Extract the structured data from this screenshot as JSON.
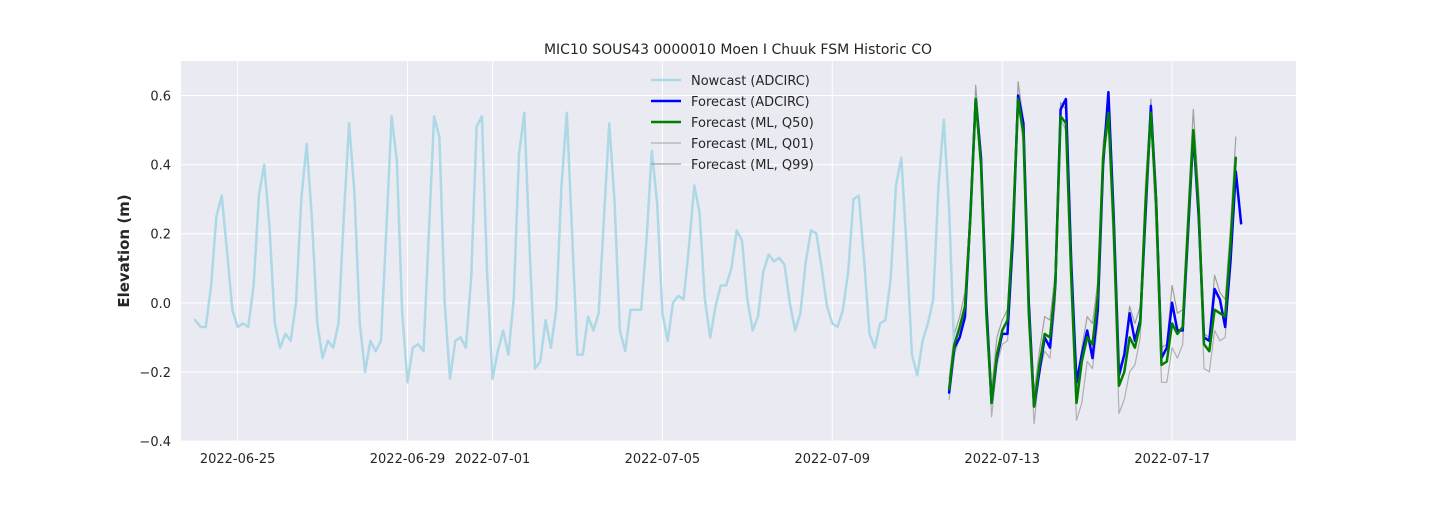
{
  "chart_data": {
    "type": "line",
    "title": "MIC10 SOUS43 0000010 Moen I Chuuk FSM Historic CO",
    "xlabel": "",
    "ylabel": "Elevation (m)",
    "ylim": [
      -0.4,
      0.7
    ],
    "xlim": [
      "2022-06-23T16:00",
      "2022-07-19T22:00"
    ],
    "grid": true,
    "legend_position": "upper center",
    "x_ticks": [
      {
        "date": "2022-06-25T00:00",
        "label": "2022-06-25"
      },
      {
        "date": "2022-06-29T00:00",
        "label": "2022-06-29"
      },
      {
        "date": "2022-07-01T00:00",
        "label": "2022-07-01"
      },
      {
        "date": "2022-07-05T00:00",
        "label": "2022-07-05"
      },
      {
        "date": "2022-07-09T00:00",
        "label": "2022-07-09"
      },
      {
        "date": "2022-07-13T00:00",
        "label": "2022-07-13"
      },
      {
        "date": "2022-07-17T00:00",
        "label": "2022-07-17"
      }
    ],
    "y_ticks": [
      {
        "value": -0.4,
        "label": "−0.4"
      },
      {
        "value": -0.2,
        "label": "−0.2"
      },
      {
        "value": 0.0,
        "label": "0.0"
      },
      {
        "value": 0.2,
        "label": "0.2"
      },
      {
        "value": 0.4,
        "label": "0.4"
      },
      {
        "value": 0.6,
        "label": "0.6"
      }
    ],
    "series": [
      {
        "name": "Nowcast (ADCIRC)",
        "color": "#add8e6",
        "width": 2.5,
        "x_start": "2022-06-24T00:00",
        "step_hours": 3,
        "values": [
          -0.05,
          -0.07,
          -0.07,
          0.05,
          0.25,
          0.31,
          0.15,
          -0.02,
          -0.07,
          -0.06,
          -0.07,
          0.05,
          0.31,
          0.4,
          0.22,
          -0.06,
          -0.13,
          -0.09,
          -0.11,
          0.0,
          0.3,
          0.46,
          0.24,
          -0.06,
          -0.16,
          -0.11,
          -0.13,
          -0.06,
          0.25,
          0.52,
          0.32,
          -0.06,
          -0.2,
          -0.11,
          -0.14,
          -0.11,
          0.21,
          0.54,
          0.41,
          -0.03,
          -0.23,
          -0.13,
          -0.12,
          -0.14,
          0.2,
          0.54,
          0.48,
          0.0,
          -0.22,
          -0.11,
          -0.1,
          -0.13,
          0.08,
          0.51,
          0.54,
          0.08,
          -0.22,
          -0.14,
          -0.08,
          -0.15,
          0.01,
          0.43,
          0.55,
          0.15,
          -0.19,
          -0.17,
          -0.05,
          -0.13,
          -0.02,
          0.34,
          0.55,
          0.2,
          -0.15,
          -0.15,
          -0.04,
          -0.08,
          -0.03,
          0.25,
          0.52,
          0.29,
          -0.08,
          -0.14,
          -0.02,
          -0.02,
          -0.02,
          0.18,
          0.44,
          0.29,
          -0.03,
          -0.11,
          0.0,
          0.02,
          0.01,
          0.16,
          0.34,
          0.26,
          0.01,
          -0.1,
          -0.01,
          0.05,
          0.05,
          0.1,
          0.21,
          0.18,
          0.01,
          -0.08,
          -0.04,
          0.09,
          0.14,
          0.12,
          0.13,
          0.11,
          0.0,
          -0.08,
          -0.03,
          0.12,
          0.21,
          0.2,
          0.1,
          -0.01,
          -0.06,
          -0.07,
          -0.02,
          0.09,
          0.3,
          0.31,
          0.12,
          -0.09,
          -0.13,
          -0.06,
          -0.05,
          0.07,
          0.34,
          0.42,
          0.16,
          -0.15,
          -0.21,
          -0.11,
          -0.06,
          0.01,
          0.34,
          0.53,
          0.27,
          -0.15
        ]
      },
      {
        "name": "Forecast (ADCIRC)",
        "color": "#0000ff",
        "width": 2.5,
        "x_start": "2022-07-11T18:00",
        "step_hours": 3,
        "values": [
          -0.26,
          -0.13,
          -0.1,
          -0.04,
          0.25,
          0.59,
          0.42,
          0.0,
          -0.29,
          -0.16,
          -0.09,
          -0.09,
          0.18,
          0.6,
          0.52,
          0.0,
          -0.3,
          -0.2,
          -0.1,
          -0.13,
          0.05,
          0.56,
          0.59,
          0.12,
          -0.23,
          -0.15,
          -0.08,
          -0.16,
          -0.02,
          0.4,
          0.61,
          0.25,
          -0.21,
          -0.15,
          -0.03,
          -0.11,
          -0.05,
          0.26,
          0.57,
          0.29,
          -0.16,
          -0.13,
          0.0,
          -0.08,
          -0.08,
          0.2,
          0.49,
          0.25,
          -0.1,
          -0.11,
          0.04,
          0.01,
          -0.07,
          0.12,
          0.38,
          0.23
        ]
      },
      {
        "name": "Forecast (ML, Q50)",
        "color": "#008000",
        "width": 2.5,
        "x_start": "2022-07-11T18:00",
        "step_hours": 3,
        "values": [
          -0.25,
          -0.12,
          -0.07,
          -0.01,
          0.24,
          0.59,
          0.4,
          -0.03,
          -0.29,
          -0.15,
          -0.08,
          -0.05,
          0.21,
          0.59,
          0.49,
          -0.03,
          -0.3,
          -0.18,
          -0.09,
          -0.1,
          0.05,
          0.54,
          0.52,
          0.08,
          -0.29,
          -0.17,
          -0.1,
          -0.12,
          0.02,
          0.42,
          0.55,
          0.22,
          -0.24,
          -0.2,
          -0.1,
          -0.13,
          -0.06,
          0.29,
          0.55,
          0.29,
          -0.18,
          -0.17,
          -0.06,
          -0.09,
          -0.07,
          0.22,
          0.5,
          0.27,
          -0.12,
          -0.14,
          -0.02,
          -0.03,
          -0.04,
          0.17,
          0.42
        ]
      },
      {
        "name": "Forecast (ML, Q01)",
        "color": "#b0b0b0",
        "width": 1.2,
        "x_start": "2022-07-11T18:00",
        "step_hours": 3,
        "values": [
          -0.28,
          -0.15,
          -0.1,
          -0.05,
          0.22,
          0.57,
          0.38,
          -0.04,
          -0.33,
          -0.18,
          -0.12,
          -0.11,
          0.16,
          0.58,
          0.46,
          -0.07,
          -0.35,
          -0.2,
          -0.14,
          -0.16,
          0.0,
          0.53,
          0.5,
          0.02,
          -0.34,
          -0.29,
          -0.17,
          -0.19,
          -0.06,
          0.4,
          0.52,
          0.14,
          -0.32,
          -0.28,
          -0.2,
          -0.18,
          -0.1,
          0.28,
          0.54,
          0.2,
          -0.23,
          -0.23,
          -0.13,
          -0.16,
          -0.12,
          0.18,
          0.47,
          0.22,
          -0.19,
          -0.2,
          -0.08,
          -0.11,
          -0.1,
          0.15,
          0.4
        ]
      },
      {
        "name": "Forecast (ML, Q99)",
        "color": "#a0a0a0",
        "width": 1.2,
        "x_start": "2022-07-11T18:00",
        "step_hours": 3,
        "values": [
          -0.22,
          -0.09,
          -0.04,
          0.03,
          0.27,
          0.63,
          0.44,
          0.0,
          -0.25,
          -0.1,
          -0.05,
          -0.02,
          0.24,
          0.64,
          0.53,
          0.01,
          -0.26,
          -0.14,
          -0.04,
          -0.05,
          0.09,
          0.58,
          0.56,
          0.12,
          -0.26,
          -0.13,
          -0.04,
          -0.06,
          0.06,
          0.46,
          0.58,
          0.27,
          -0.19,
          -0.15,
          -0.01,
          -0.06,
          -0.01,
          0.35,
          0.59,
          0.34,
          -0.13,
          -0.12,
          0.05,
          -0.03,
          -0.02,
          0.27,
          0.56,
          0.32,
          -0.09,
          -0.1,
          0.08,
          0.03,
          0.01,
          0.22,
          0.48
        ]
      }
    ]
  }
}
